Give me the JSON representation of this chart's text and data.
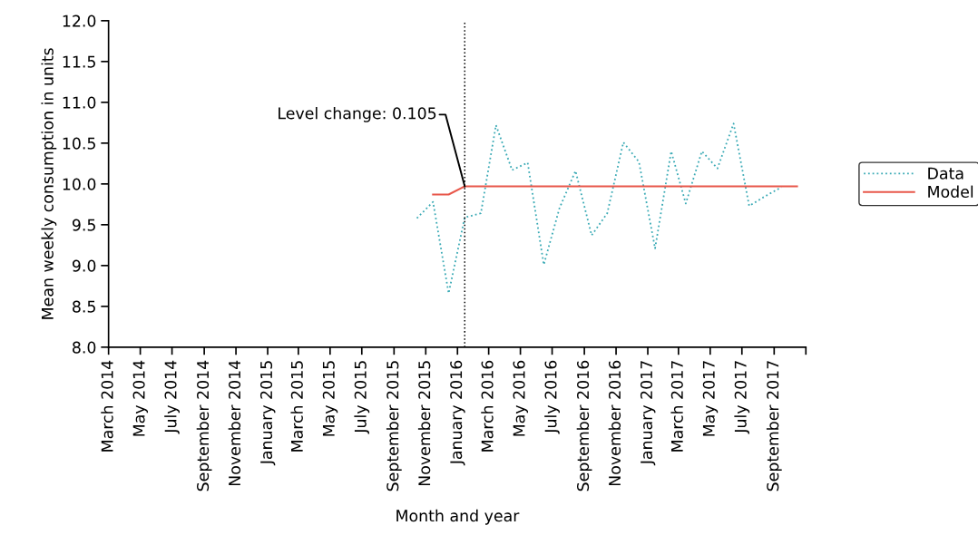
{
  "chart_data": {
    "type": "line",
    "xlabel": "Month and year",
    "ylabel": "Mean weekly consumption in units",
    "series": [
      {
        "name": "Data",
        "color": "#3aaab5",
        "line_style": "dotted",
        "x": [
          "2015-10-15",
          "2015-11-15",
          "2015-12-15",
          "2016-01-15",
          "2016-02-15",
          "2016-03-15",
          "2016-04-15",
          "2016-05-15",
          "2016-06-15",
          "2016-07-15",
          "2016-08-15",
          "2016-09-15",
          "2016-10-15",
          "2016-11-15",
          "2016-12-15",
          "2017-01-15",
          "2017-02-15",
          "2017-03-15",
          "2017-04-15",
          "2017-05-15",
          "2017-06-15",
          "2017-07-15",
          "2017-08-15",
          "2017-09-15"
        ],
        "values": [
          9.58,
          9.78,
          8.66,
          9.59,
          9.64,
          10.72,
          10.17,
          10.26,
          9.01,
          9.7,
          10.16,
          9.37,
          9.64,
          10.51,
          10.27,
          9.21,
          10.4,
          9.76,
          10.4,
          10.19,
          10.74,
          9.73,
          9.85,
          9.96
        ]
      },
      {
        "name": "Model",
        "color": "#e8574a",
        "line_style": "solid",
        "x": [
          "2015-11-15",
          "2015-12-15",
          "2016-01-15",
          "2016-02-15",
          "2016-03-15",
          "2016-04-15",
          "2016-05-15",
          "2016-06-15",
          "2016-07-15",
          "2016-08-15",
          "2016-09-15",
          "2016-10-15",
          "2016-11-15",
          "2016-12-15",
          "2017-01-15",
          "2017-02-15",
          "2017-03-15",
          "2017-04-15",
          "2017-05-15",
          "2017-06-15",
          "2017-07-15",
          "2017-08-15",
          "2017-09-15",
          "2017-10-15"
        ],
        "values": [
          9.87,
          9.87,
          9.97,
          9.97,
          9.97,
          9.97,
          9.97,
          9.97,
          9.97,
          9.97,
          9.97,
          9.97,
          9.97,
          9.97,
          9.97,
          9.97,
          9.97,
          9.97,
          9.97,
          9.97,
          9.97,
          9.97,
          9.97,
          9.97
        ]
      }
    ],
    "ref_lines": [
      {
        "axis": "x",
        "value": "2016-01-15",
        "label": null,
        "color": "#000000",
        "line_style": "dotted"
      }
    ],
    "annotations": [
      {
        "text": "Level change: 0.105",
        "x": "2016-01-15",
        "y": 9.97
      }
    ],
    "xlim": [
      "2014-03-01",
      "2017-11-01"
    ],
    "xticks": [
      {
        "value": "2014-03-01",
        "label": "March 2014"
      },
      {
        "value": "2014-05-01",
        "label": "May 2014"
      },
      {
        "value": "2014-07-01",
        "label": "July 2014"
      },
      {
        "value": "2014-09-01",
        "label": "September 2014"
      },
      {
        "value": "2014-11-01",
        "label": "November 2014"
      },
      {
        "value": "2015-01-01",
        "label": "January 2015"
      },
      {
        "value": "2015-03-01",
        "label": "March 2015"
      },
      {
        "value": "2015-05-01",
        "label": "May 2015"
      },
      {
        "value": "2015-07-01",
        "label": "July 2015"
      },
      {
        "value": "2015-09-01",
        "label": "September 2015"
      },
      {
        "value": "2015-11-01",
        "label": "November 2015"
      },
      {
        "value": "2016-01-01",
        "label": "January 2016"
      },
      {
        "value": "2016-03-01",
        "label": "March 2016"
      },
      {
        "value": "2016-05-01",
        "label": "May 2016"
      },
      {
        "value": "2016-07-01",
        "label": "July 2016"
      },
      {
        "value": "2016-09-01",
        "label": "September 2016"
      },
      {
        "value": "2016-11-01",
        "label": "November 2016"
      },
      {
        "value": "2017-01-01",
        "label": "January 2017"
      },
      {
        "value": "2017-03-01",
        "label": "March 2017"
      },
      {
        "value": "2017-05-01",
        "label": "May 2017"
      },
      {
        "value": "2017-07-01",
        "label": "July 2017"
      },
      {
        "value": "2017-09-01",
        "label": "September 2017"
      },
      {
        "value": "2017-11-01",
        "label": null
      }
    ],
    "ylim": [
      8.0,
      12.0
    ],
    "yticks": [
      {
        "value": 8,
        "label": "8.0"
      },
      8.5,
      {
        "value": 9,
        "label": "9.0"
      },
      9.5,
      {
        "value": 10,
        "label": "10.0"
      },
      10.5,
      {
        "value": 11,
        "label": "11.0"
      },
      11.5,
      {
        "value": 12,
        "label": "12.0"
      }
    ],
    "grid": false,
    "legend": "right",
    "marker": "none"
  }
}
